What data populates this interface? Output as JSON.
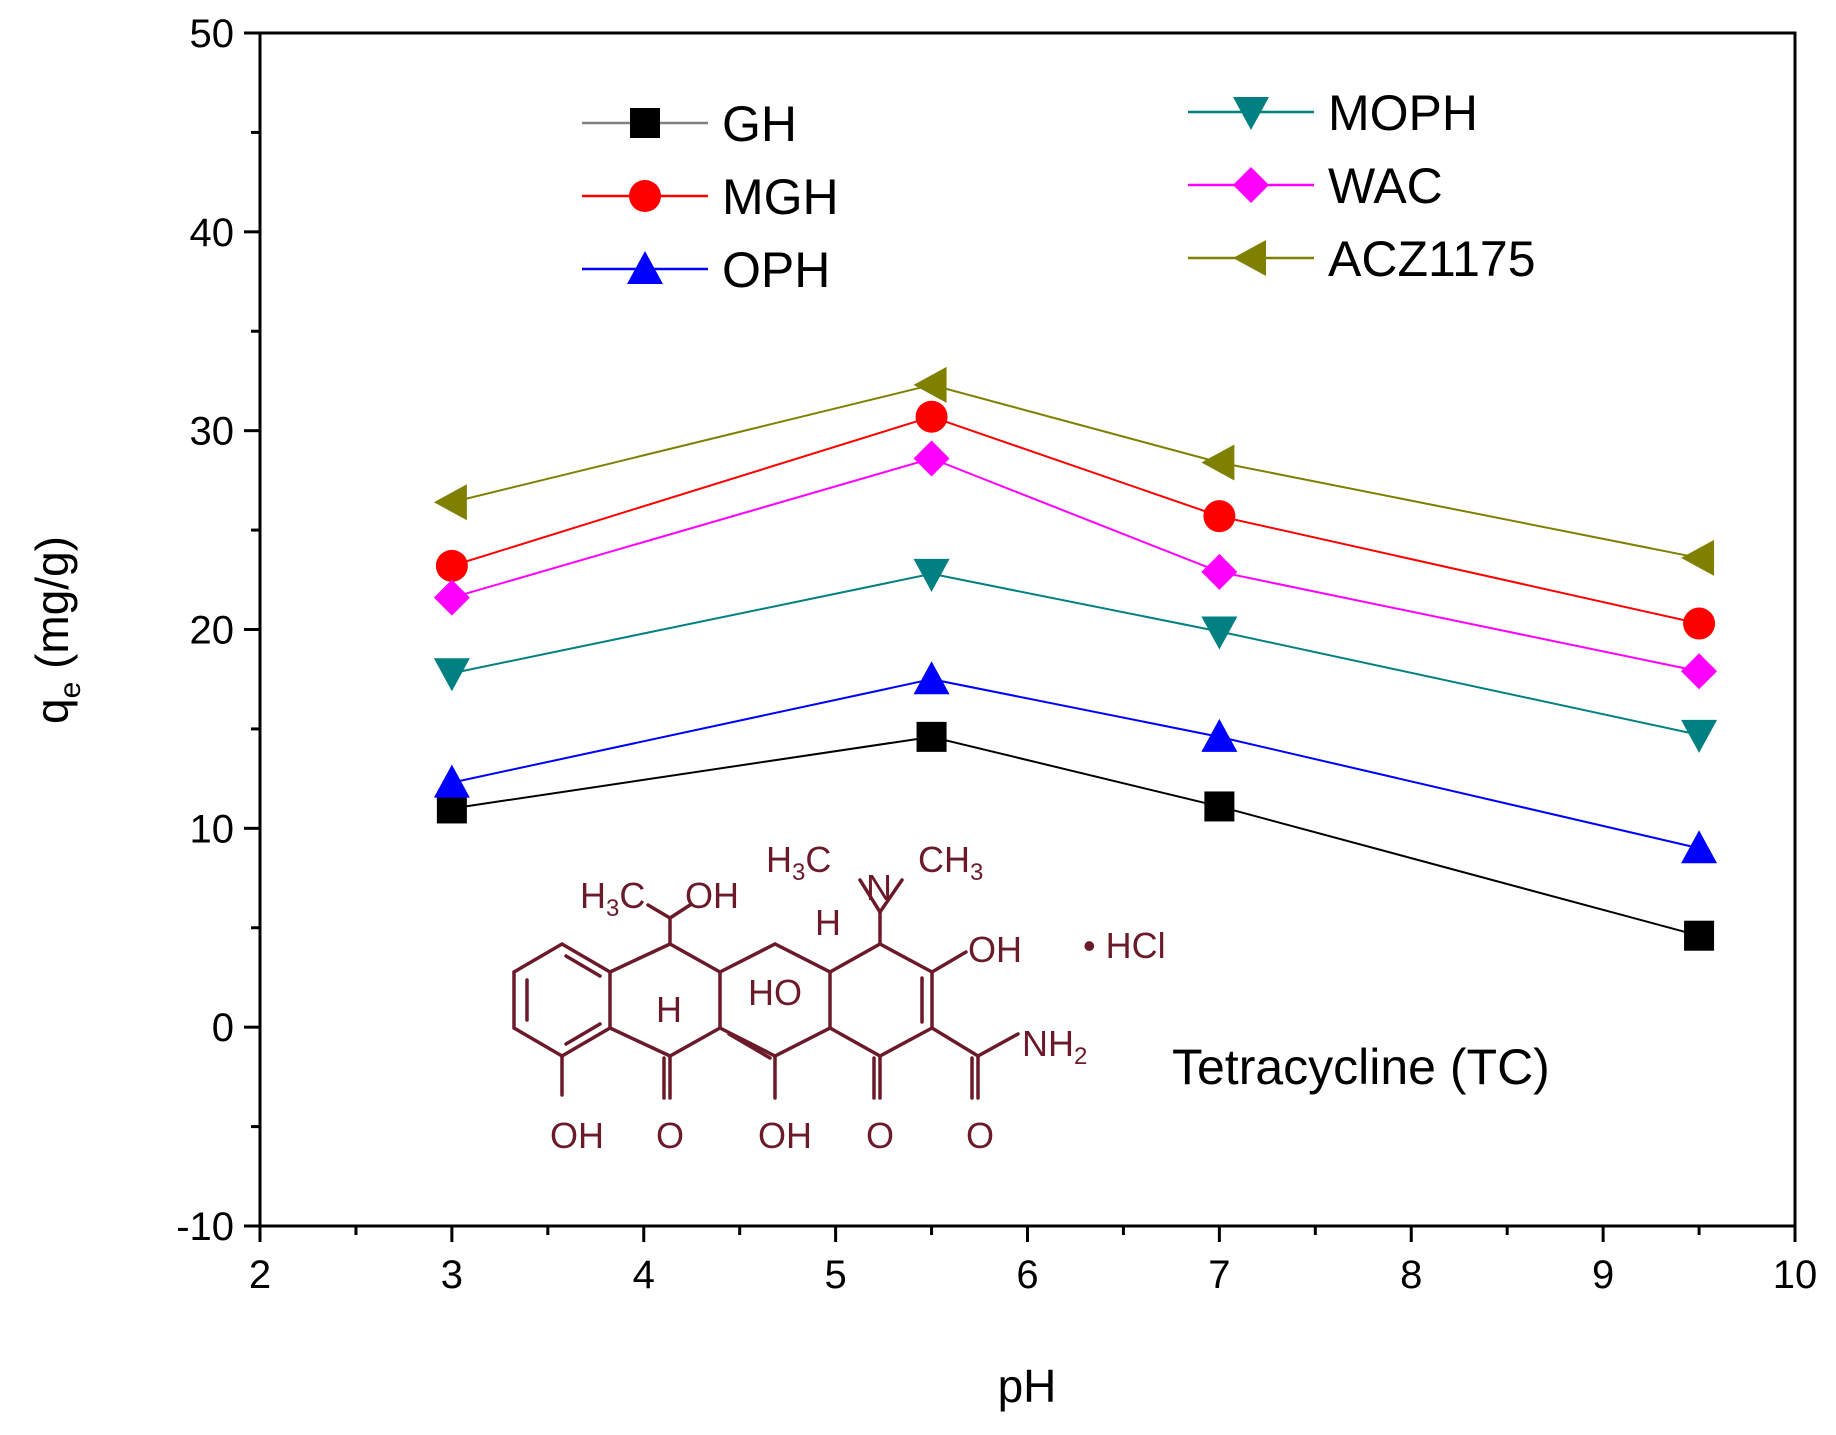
{
  "chart_data": {
    "type": "line",
    "title": "",
    "xlabel": "pH",
    "ylabel_main": "q",
    "ylabel_sub": "e",
    "ylabel_units": "(mg/g)",
    "xlim": [
      2,
      10
    ],
    "ylim": [
      -10,
      50
    ],
    "x_ticks": [
      2,
      3,
      4,
      5,
      6,
      7,
      8,
      9,
      10
    ],
    "y_ticks": [
      -10,
      0,
      10,
      20,
      30,
      40,
      50
    ],
    "x": [
      3,
      5.5,
      7,
      9.5
    ],
    "series": [
      {
        "name": "GH",
        "marker": "square",
        "color": "#000000",
        "values": [
          11.0,
          14.6,
          11.1,
          4.6
        ]
      },
      {
        "name": "MGH",
        "marker": "circle",
        "color": "#ff0000",
        "values": [
          23.2,
          30.7,
          25.7,
          20.3
        ]
      },
      {
        "name": "OPH",
        "marker": "triangle-up",
        "color": "#0000ff",
        "values": [
          12.3,
          17.5,
          14.6,
          9.0
        ]
      },
      {
        "name": "MOPH",
        "marker": "triangle-down",
        "color": "#008080",
        "values": [
          17.8,
          22.8,
          19.9,
          14.7
        ]
      },
      {
        "name": "WAC",
        "marker": "diamond",
        "color": "#ff00ff",
        "values": [
          21.6,
          28.6,
          22.9,
          17.9
        ]
      },
      {
        "name": "ACZ1175",
        "marker": "triangle-left",
        "color": "#808000",
        "values": [
          26.4,
          32.3,
          28.4,
          23.6
        ]
      }
    ],
    "legend_placement": "top, two columns",
    "annotation": "Tetracycline (TC)"
  },
  "structure": {
    "labels": {
      "methyl_left_main": "H",
      "methyl_left_sub": "3",
      "methyl_left_rest": "C",
      "oh_top": "OH",
      "n_methyl_left_main": "H",
      "n_methyl_left_sub": "3",
      "n_methyl_left_rest": "C",
      "n_methyl_right_main": "CH",
      "n_methyl_right_sub": "3",
      "nitrogen": "N",
      "h_upper": "H",
      "oh_ring": "OH",
      "hcl": "• HCl",
      "h_lower": "H",
      "ho_center": "HO",
      "amide_main": "NH",
      "amide_sub": "2",
      "oh_bottom_left": "OH",
      "o_bottom_1": "O",
      "oh_bottom_mid": "OH",
      "o_bottom_2": "O",
      "o_bottom_3": "O"
    }
  }
}
